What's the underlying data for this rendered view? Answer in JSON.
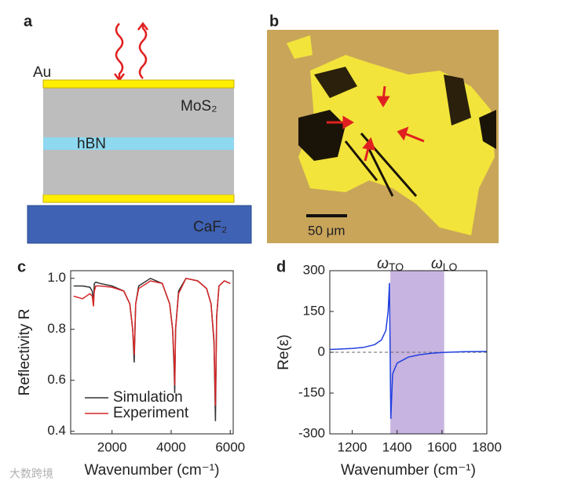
{
  "diagram": {
    "panel": "a",
    "layers": {
      "top_electrode": "Au",
      "semiconductor": "MoS₂",
      "spacer": "hBN",
      "substrate": "CaF₂"
    }
  },
  "micrograph": {
    "panel": "b",
    "scale_bar": "50 μm"
  },
  "watermark": "大数跨境",
  "chart_data": [
    {
      "type": "line",
      "panel": "c",
      "xlabel": "Wavenumber (cm⁻¹)",
      "ylabel": "Reflectivity R",
      "x": [
        700,
        1000,
        1250,
        1330,
        1370,
        1400,
        1450,
        1600,
        2000,
        2400,
        2600,
        2700,
        2750,
        2800,
        2900,
        3300,
        3700,
        3950,
        4050,
        4100,
        4120,
        4150,
        4250,
        4500,
        4900,
        5200,
        5350,
        5450,
        5500,
        5540,
        5620,
        5800,
        6000
      ],
      "series": [
        {
          "name": "Simulation",
          "color": "#333333",
          "values": [
            0.97,
            0.97,
            0.965,
            0.95,
            0.9,
            0.98,
            0.985,
            0.98,
            0.97,
            0.95,
            0.9,
            0.8,
            0.67,
            0.9,
            0.97,
            1.0,
            0.98,
            0.9,
            0.8,
            0.65,
            0.55,
            0.8,
            0.95,
            1.0,
            0.99,
            0.96,
            0.9,
            0.75,
            0.44,
            0.85,
            0.97,
            0.99,
            0.98
          ]
        },
        {
          "name": "Experiment",
          "color": "#d62728",
          "values": [
            0.93,
            0.92,
            0.94,
            0.93,
            0.89,
            0.95,
            0.97,
            0.97,
            0.965,
            0.95,
            0.9,
            0.8,
            0.7,
            0.9,
            0.96,
            0.99,
            0.98,
            0.9,
            0.8,
            0.68,
            0.58,
            0.8,
            0.94,
            1.0,
            0.99,
            0.96,
            0.9,
            0.76,
            0.5,
            0.85,
            0.97,
            0.99,
            0.98
          ]
        }
      ],
      "xlim": [
        600,
        6100
      ],
      "xticks": [
        2000,
        4000,
        6000
      ],
      "ylim": [
        0.39,
        1.03
      ],
      "yticks": [
        {
          "value": 1.0,
          "label": "1.0"
        },
        0.8,
        0.6,
        0.4
      ],
      "legend": "lower left"
    },
    {
      "type": "line",
      "panel": "d",
      "xlabel": "Wavenumber (cm⁻¹)",
      "ylabel": "Re(ε)",
      "x": [
        1100,
        1200,
        1250,
        1300,
        1330,
        1350,
        1360,
        1366,
        1372,
        1380,
        1400,
        1450,
        1500,
        1550,
        1600,
        1650,
        1700,
        1800
      ],
      "series": [
        {
          "color": "#1f3fe0",
          "values": [
            10,
            14,
            18,
            28,
            45,
            80,
            150,
            255,
            -245,
            -80,
            -40,
            -18,
            -9,
            -4,
            -1,
            1,
            2,
            3
          ]
        }
      ],
      "xlim": [
        1100,
        1800
      ],
      "xticks": [
        1200,
        1400,
        1600,
        1800
      ],
      "ylim": [
        -300,
        300
      ],
      "yticks": [
        300,
        150,
        0,
        -150,
        -300
      ],
      "shaded_region": [
        1370,
        1610
      ],
      "shade_color": "#c8b4e0",
      "hline": 0,
      "annotations": [
        {
          "symbol": "ω",
          "subscript": "TO",
          "x": 1370
        },
        {
          "symbol": "ω",
          "subscript": "LO",
          "x": 1610
        }
      ]
    }
  ]
}
